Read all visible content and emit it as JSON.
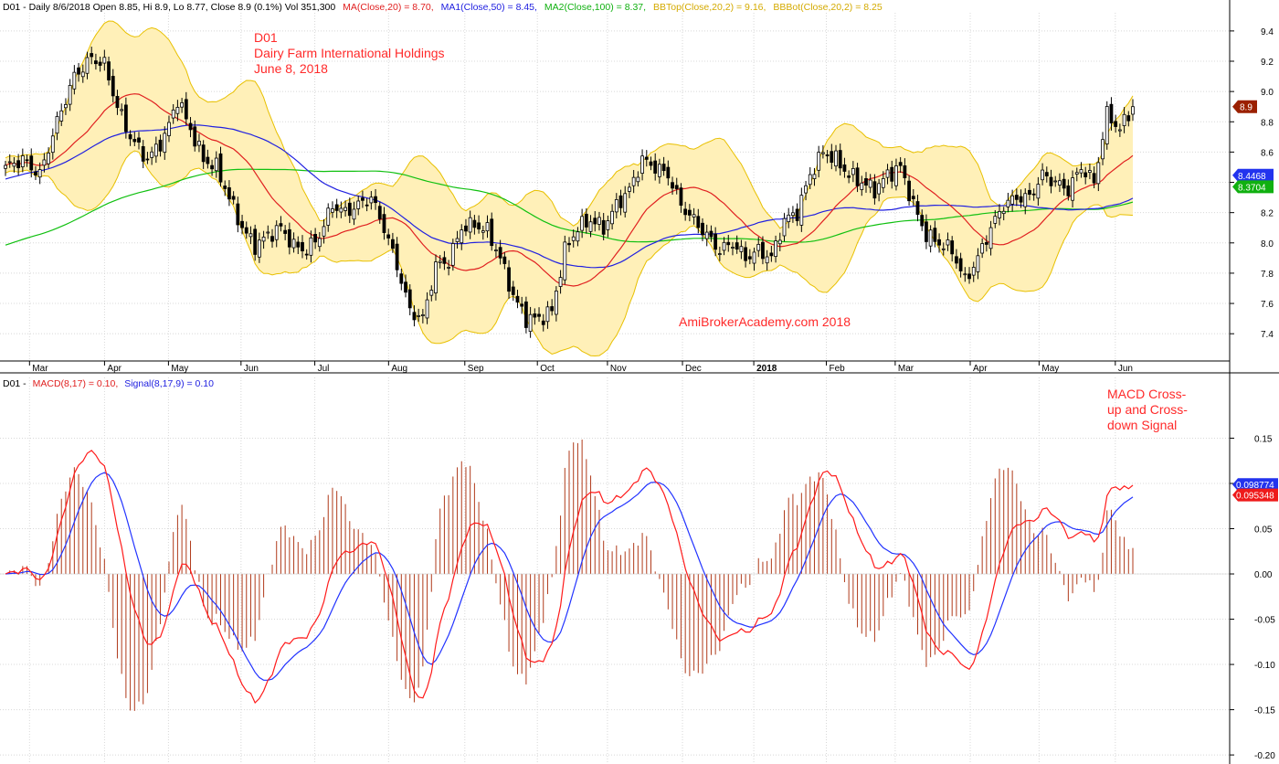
{
  "price_panel": {
    "header": {
      "prefix": "D01 - Daily 8/6/2018 Open 8.85, Hi 8.9, Lo 8.77, Close 8.9 (0.1%) Vol 351,300",
      "ma20": "MA(Close,20) = 8.70,",
      "ma50": "MA1(Close,50) = 8.45,",
      "ma100": "MA2(Close,100) = 8.37,",
      "bbtop": "BBTop(Close,20,2) = 9.16,",
      "bbbot": "BBBot(Close,20,2) = 8.25"
    },
    "annotation": {
      "line1": "D01",
      "line2": "Dairy Farm International Holdings",
      "line3": "June 8, 2018"
    },
    "watermark": "AmiBrokerAcademy.com   2018",
    "price_tags": {
      "close": "8.9",
      "ma50": "8.4468",
      "ma100": "8.3704"
    }
  },
  "macd_panel": {
    "header": {
      "prefix": "D01 -",
      "macd": "MACD(8,17) = 0.10,",
      "signal": "Signal(8,17,9) = 0.10"
    },
    "annotation": {
      "line1": "MACD Cross-",
      "line2": "up and Cross-",
      "line3": "down Signal"
    },
    "value_tags": {
      "signal": "0.098774",
      "macd": "0.095348"
    }
  },
  "colors": {
    "candle": "#000000",
    "ma20": "#e02020",
    "ma50": "#2020e0",
    "ma100": "#10c010",
    "bb_line": "#e8c000",
    "bb_fill": "#fff0b8",
    "macd": "#ff1a1a",
    "signal": "#2233ff",
    "histogram": "#b03a1a",
    "annotation": "#ff2a2a",
    "grid": "#d8d8d8"
  },
  "chart_data": [
    {
      "type": "candlestick",
      "title": "D01",
      "x_labels": [
        "Mar",
        "Apr",
        "May",
        "Jun",
        "Jul",
        "Aug",
        "Sep",
        "Oct",
        "Nov",
        "Dec",
        "2018",
        "Feb",
        "Mar",
        "Apr",
        "May",
        "Jun"
      ],
      "ylim": [
        7.22,
        9.52
      ],
      "y_ticks": [
        "7.4",
        "7.6",
        "7.8",
        "8.0",
        "8.2",
        "8.4",
        "8.6",
        "8.8",
        "9.0",
        "9.2",
        "9.4"
      ],
      "close_keypoints": [
        [
          0,
          8.5
        ],
        [
          4,
          8.55
        ],
        [
          8,
          8.45
        ],
        [
          12,
          8.8
        ],
        [
          16,
          9.1
        ],
        [
          20,
          9.22
        ],
        [
          23,
          9.18
        ],
        [
          26,
          8.9
        ],
        [
          29,
          8.7
        ],
        [
          33,
          8.55
        ],
        [
          37,
          8.7
        ],
        [
          40,
          8.95
        ],
        [
          43,
          8.75
        ],
        [
          46,
          8.55
        ],
        [
          49,
          8.5
        ],
        [
          52,
          8.3
        ],
        [
          55,
          8.1
        ],
        [
          58,
          7.98
        ],
        [
          61,
          8.05
        ],
        [
          64,
          8.1
        ],
        [
          67,
          7.98
        ],
        [
          70,
          7.95
        ],
        [
          73,
          8.05
        ],
        [
          76,
          8.25
        ],
        [
          79,
          8.2
        ],
        [
          82,
          8.25
        ],
        [
          85,
          8.3
        ],
        [
          88,
          8.1
        ],
        [
          91,
          7.85
        ],
        [
          94,
          7.55
        ],
        [
          97,
          7.5
        ],
        [
          100,
          7.85
        ],
        [
          103,
          7.88
        ],
        [
          106,
          8.1
        ],
        [
          109,
          8.12
        ],
        [
          112,
          8.08
        ],
        [
          115,
          7.9
        ],
        [
          118,
          7.65
        ],
        [
          121,
          7.5
        ],
        [
          124,
          7.5
        ],
        [
          127,
          7.55
        ],
        [
          130,
          7.95
        ],
        [
          133,
          8.1
        ],
        [
          136,
          8.15
        ],
        [
          139,
          8.1
        ],
        [
          142,
          8.25
        ],
        [
          145,
          8.35
        ],
        [
          148,
          8.55
        ],
        [
          151,
          8.5
        ],
        [
          154,
          8.45
        ],
        [
          157,
          8.25
        ],
        [
          160,
          8.15
        ],
        [
          163,
          8.05
        ],
        [
          166,
          7.95
        ],
        [
          169,
          8.0
        ],
        [
          172,
          7.9
        ],
        [
          175,
          7.95
        ],
        [
          178,
          7.9
        ],
        [
          181,
          8.15
        ],
        [
          184,
          8.2
        ],
        [
          187,
          8.45
        ],
        [
          190,
          8.6
        ],
        [
          193,
          8.55
        ],
        [
          196,
          8.45
        ],
        [
          199,
          8.4
        ],
        [
          202,
          8.35
        ],
        [
          205,
          8.45
        ],
        [
          208,
          8.5
        ],
        [
          211,
          8.25
        ],
        [
          214,
          8.05
        ],
        [
          217,
          8.0
        ],
        [
          220,
          7.95
        ],
        [
          223,
          7.75
        ],
        [
          226,
          7.9
        ],
        [
          229,
          8.1
        ],
        [
          232,
          8.25
        ],
        [
          235,
          8.3
        ],
        [
          238,
          8.3
        ],
        [
          241,
          8.45
        ],
        [
          244,
          8.4
        ],
        [
          247,
          8.35
        ],
        [
          250,
          8.5
        ],
        [
          253,
          8.4
        ],
        [
          256,
          8.85
        ],
        [
          259,
          8.75
        ],
        [
          262,
          8.9
        ]
      ],
      "series": [
        {
          "name": "MA(Close,20)",
          "role": "ma20",
          "last": 8.7
        },
        {
          "name": "MA1(Close,50)",
          "role": "ma50",
          "last": 8.45
        },
        {
          "name": "MA2(Close,100)",
          "role": "ma100",
          "last": 8.37
        },
        {
          "name": "BBTop(Close,20,2)",
          "role": "bbtop",
          "last": 9.16
        },
        {
          "name": "BBBot(Close,20,2)",
          "role": "bbbot",
          "last": 8.25
        }
      ]
    },
    {
      "type": "line",
      "ylim": [
        -0.21,
        0.205
      ],
      "y_ticks": [
        "-0.20",
        "-0.15",
        "-0.10",
        "-0.05",
        "0.00",
        "0.05",
        "0.10",
        "0.15"
      ],
      "series": [
        {
          "name": "MACD(8,17)",
          "role": "macd",
          "last": 0.095348
        },
        {
          "name": "Signal(8,17,9)",
          "role": "signal",
          "last": 0.098774
        }
      ]
    }
  ]
}
